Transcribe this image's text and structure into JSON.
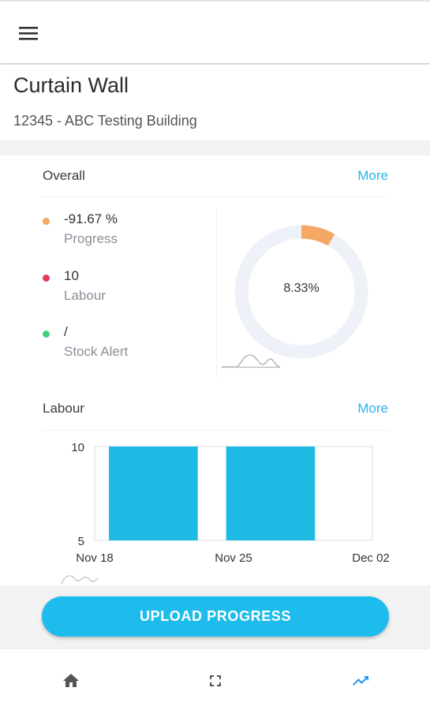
{
  "header": {
    "title": "Curtain Wall",
    "project": "12345 - ABC Testing Building"
  },
  "overall": {
    "title": "Overall",
    "more_label": "More",
    "legend": [
      {
        "value": "-91.67 %",
        "label": "Progress",
        "color": "#f4a863"
      },
      {
        "value": "10",
        "label": "Labour",
        "color": "#e8395a"
      },
      {
        "value": "/",
        "label": "Stock Alert",
        "color": "#3ed17a"
      }
    ],
    "donut": {
      "center_label": "8.33%",
      "fraction": 0.0833,
      "fill_color": "#f4a863",
      "track_color": "#eef1f7"
    }
  },
  "labour": {
    "title": "Labour",
    "more_label": "More"
  },
  "chart_data": {
    "type": "bar",
    "categories": [
      "Nov 18",
      "Nov 25"
    ],
    "x_tick_labels": [
      "Nov 18",
      "Nov 25",
      "Dec 02"
    ],
    "values": [
      10,
      10
    ],
    "ylim": [
      5,
      10
    ],
    "y_tick_labels": [
      "10",
      "5"
    ],
    "bar_color": "#1ebae3",
    "grid": false
  },
  "actions": {
    "upload_label": "UPLOAD PROGRESS"
  },
  "nav": {
    "items": [
      {
        "icon": "home-icon",
        "active": false
      },
      {
        "icon": "fullscreen-icon",
        "active": false
      },
      {
        "icon": "trending-up-icon",
        "active": true
      }
    ],
    "active_color": "#2196f3",
    "inactive_color": "#555555"
  },
  "colors": {
    "accent": "#1ebcec",
    "link": "#2bb3e8"
  }
}
